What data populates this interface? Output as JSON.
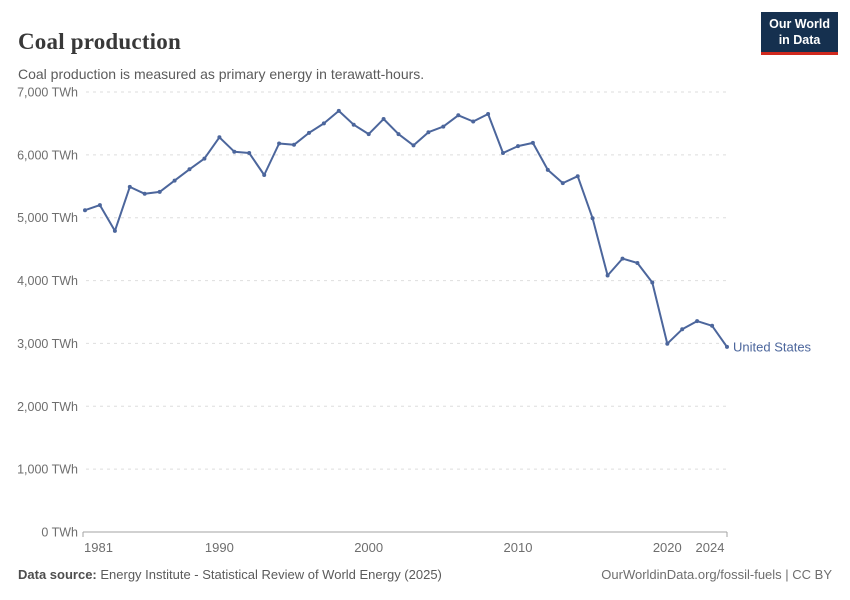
{
  "header": {
    "title": "Coal production",
    "subtitle": "Coal production is measured as primary energy in terawatt-hours.",
    "logo_line1": "Our World",
    "logo_line2": "in Data"
  },
  "chart_data": {
    "type": "line",
    "title": "Coal production",
    "unit": "TWh",
    "grid": "horizontal-dashed",
    "legend_position": "end-of-line-label",
    "xlim": [
      1981,
      2024
    ],
    "ylim": [
      0,
      7000
    ],
    "xticks": [
      1981,
      1990,
      2000,
      2010,
      2020,
      2024
    ],
    "yticks": [
      {
        "value": 0,
        "label": "0 TWh"
      },
      {
        "value": 1000,
        "label": "1,000 TWh"
      },
      {
        "value": 2000,
        "label": "2,000 TWh"
      },
      {
        "value": 3000,
        "label": "3,000 TWh"
      },
      {
        "value": 4000,
        "label": "4,000 TWh"
      },
      {
        "value": 5000,
        "label": "5,000 TWh"
      },
      {
        "value": 6000,
        "label": "6,000 TWh"
      },
      {
        "value": 7000,
        "label": "7,000 TWh"
      }
    ],
    "x": [
      1981,
      1982,
      1983,
      1984,
      1985,
      1986,
      1987,
      1988,
      1989,
      1990,
      1991,
      1992,
      1993,
      1994,
      1995,
      1996,
      1997,
      1998,
      1999,
      2000,
      2001,
      2002,
      2003,
      2004,
      2005,
      2006,
      2007,
      2008,
      2009,
      2010,
      2011,
      2012,
      2013,
      2014,
      2015,
      2016,
      2017,
      2018,
      2019,
      2020,
      2021,
      2022,
      2023,
      2024
    ],
    "series": [
      {
        "name": "United States",
        "color": "#4c669c",
        "values": [
          5120,
          5200,
          4790,
          5490,
          5380,
          5410,
          5590,
          5770,
          5940,
          6280,
          6050,
          6030,
          5680,
          6180,
          6160,
          6350,
          6500,
          6700,
          6480,
          6330,
          6570,
          6330,
          6150,
          6360,
          6450,
          6630,
          6530,
          6650,
          6030,
          6140,
          6190,
          5760,
          5550,
          5660,
          4990,
          4080,
          4350,
          4280,
          3970,
          2995,
          3225,
          3355,
          3280,
          2945
        ]
      }
    ]
  },
  "footer": {
    "source_label": "Data source:",
    "source_text": " Energy Institute - Statistical Review of World Energy (2025)",
    "credit": "OurWorldinData.org/fossil-fuels | CC BY"
  },
  "colors": {
    "line": "#4c669c",
    "grid": "#dedede",
    "axis": "#a3a3a3",
    "tick_text": "#6e6e6e",
    "logo_bg": "#15304f",
    "logo_red": "#d0291e"
  }
}
